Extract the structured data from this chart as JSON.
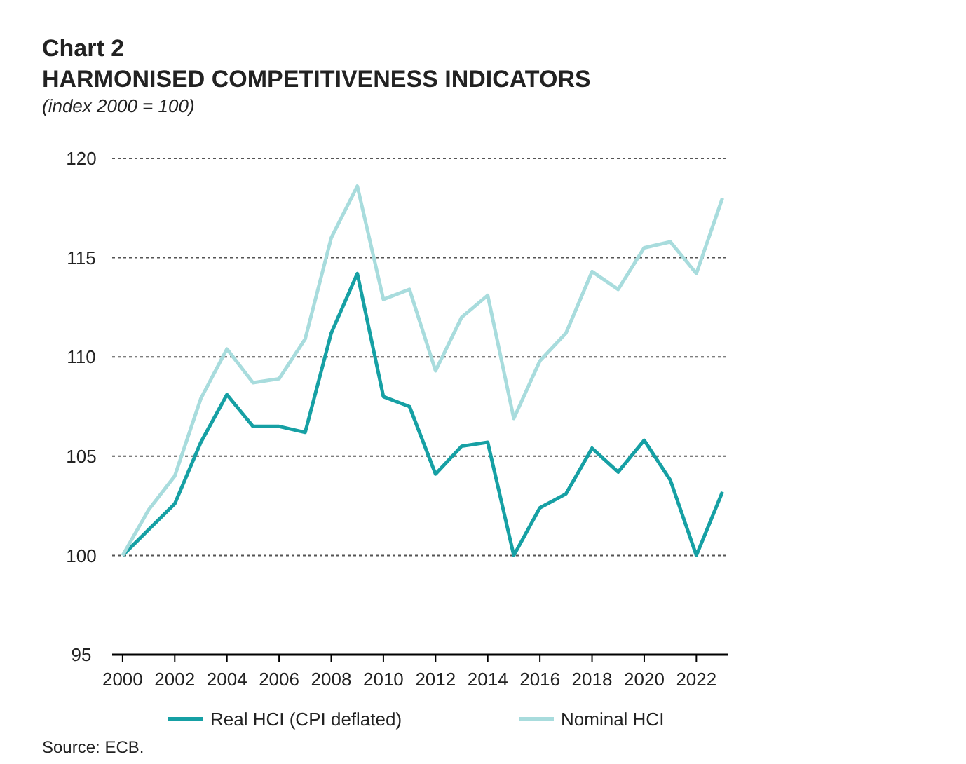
{
  "chart_data": {
    "type": "line",
    "title": "Chart 2",
    "subtitle": "HARMONISED COMPETITIVENESS INDICATORS",
    "ylabel": "(index 2000 = 100)",
    "x": [
      2000,
      2001,
      2002,
      2003,
      2004,
      2005,
      2006,
      2007,
      2008,
      2009,
      2010,
      2011,
      2012,
      2013,
      2014,
      2015,
      2016,
      2017,
      2018,
      2019,
      2020,
      2021,
      2022,
      2023
    ],
    "series": [
      {
        "name": "Real HCI (CPI deflated)",
        "color": "#16a0a4",
        "values": [
          100,
          101.3,
          102.6,
          105.7,
          108.1,
          106.5,
          106.5,
          106.2,
          111.2,
          114.2,
          108.0,
          107.5,
          104.1,
          105.5,
          105.7,
          100.0,
          102.4,
          103.1,
          105.4,
          104.2,
          105.8,
          103.8,
          100.0,
          103.2
        ]
      },
      {
        "name": "Nominal HCI",
        "color": "#a8dcdd",
        "values": [
          100,
          102.3,
          104.0,
          107.9,
          110.4,
          108.7,
          108.9,
          110.9,
          116.0,
          118.6,
          112.9,
          113.4,
          109.3,
          112.0,
          113.1,
          106.9,
          109.8,
          111.2,
          114.3,
          113.4,
          115.5,
          115.8,
          114.2,
          118.0
        ]
      }
    ],
    "xlim": [
      1999.6,
      2023.2
    ],
    "xticks": [
      2000,
      2002,
      2004,
      2006,
      2008,
      2010,
      2012,
      2014,
      2016,
      2018,
      2020,
      2022
    ],
    "ylim": [
      95,
      120
    ],
    "yticks": [
      95,
      100,
      105,
      110,
      115,
      120
    ],
    "grid": "y",
    "legend": "bottom",
    "line_style": "solid",
    "marker": "none",
    "annotations": [
      "Source: ECB."
    ]
  }
}
